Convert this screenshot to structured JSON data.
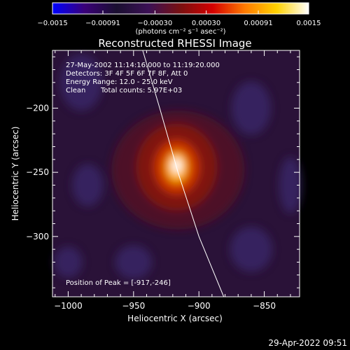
{
  "chart_data": {
    "type": "heatmap",
    "title": "Reconstructed RHESSI Image",
    "xlabel": "Heliocentric X (arcsec)",
    "ylabel": "Heliocentric Y (arcsec)",
    "xlim": [
      -1012,
      -823
    ],
    "ylim": [
      -347,
      -155
    ],
    "x_ticks": [
      {
        "value": -1000,
        "label": "−1000"
      },
      {
        "value": -950,
        "label": "−950"
      },
      {
        "value": -900,
        "label": "−900"
      },
      {
        "value": -850,
        "label": "−850"
      }
    ],
    "y_ticks": [
      {
        "value": -200,
        "label": "−200"
      },
      {
        "value": -250,
        "label": "−250"
      },
      {
        "value": -300,
        "label": "−300"
      }
    ],
    "colorbar": {
      "range": [
        -0.0015,
        0.0015
      ],
      "ticks": [
        {
          "value": -0.0015,
          "label": "−0.0015"
        },
        {
          "value": -0.00091,
          "label": "−0.00091"
        },
        {
          "value": -0.0003,
          "label": "−0.00030"
        },
        {
          "value": 0.0003,
          "label": "0.00030"
        },
        {
          "value": 0.00091,
          "label": "0.00091"
        },
        {
          "value": 0.0015,
          "label": "0.0015"
        }
      ],
      "unit_label": "(photons cm⁻² s⁻¹ asec⁻²)",
      "colors": [
        "#0000ff",
        "#3a0078",
        "#1a0f30",
        "#3b1055",
        "#7a1010",
        "#d40000",
        "#ff7a00",
        "#ffd200",
        "#ffffff"
      ]
    },
    "peak": {
      "x": -917,
      "y": -246
    },
    "limb_line": [
      [
        -943,
        -155
      ],
      [
        -930,
        -200
      ],
      [
        -916,
        -250
      ],
      [
        -900,
        -300
      ],
      [
        -881,
        -347
      ]
    ],
    "annotations": {
      "time": "27-May-2002 11:14:16.000 to 11:19:20.000",
      "detectors": "Detectors: 3F 4F 5F 6F 7F 8F, Att 0",
      "energy": "Energy Range: 12.0 - 25.0 keV",
      "clean": "Clean",
      "counts": "Total counts: 5.97E+03",
      "peak_label": "Position of Peak = [-917,-246]"
    },
    "grid": false
  },
  "footer": {
    "timestamp": "29-Apr-2022 09:51"
  }
}
